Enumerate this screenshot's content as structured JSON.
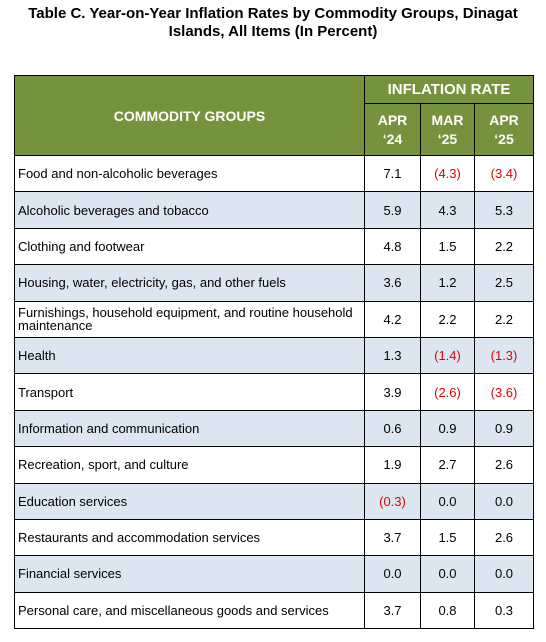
{
  "title": "Table C. Year-on-Year Inflation Rates by Commodity Groups, Dinagat Islands, All Items (In Percent)",
  "table": {
    "header": {
      "group": "COMMODITY GROUPS",
      "span": "INFLATION RATE",
      "columns": [
        "APR ‘24",
        "MAR ‘25",
        "APR ‘25"
      ]
    },
    "rows": [
      [
        "Food and non-alcoholic beverages",
        "7.1",
        "(4.3)",
        "(3.4)"
      ],
      [
        "Alcoholic beverages and tobacco",
        "5.9",
        "4.3",
        "5.3"
      ],
      [
        "Clothing and footwear",
        "4.8",
        "1.5",
        "2.2"
      ],
      [
        "Housing, water, electricity, gas, and other fuels",
        "3.6",
        "1.2",
        "2.5"
      ],
      [
        "Furnishings, household equipment, and routine household maintenance",
        "4.2",
        "2.2",
        "2.2"
      ],
      [
        "Health",
        "1.3",
        "(1.4)",
        "(1.3)"
      ],
      [
        "Transport",
        "3.9",
        "(2.6)",
        "(3.6)"
      ],
      [
        "Information and communication",
        "0.6",
        "0.9",
        "0.9"
      ],
      [
        "Recreation, sport, and culture",
        "1.9",
        "2.7",
        "2.6"
      ],
      [
        "Education services",
        "(0.3)",
        "0.0",
        "0.0"
      ],
      [
        "Restaurants and accommodation services",
        "3.7",
        "1.5",
        "2.6"
      ],
      [
        "Financial services",
        "0.0",
        "0.0",
        "0.0"
      ],
      [
        "Personal care, and miscellaneous goods and services",
        "3.7",
        "0.8",
        "0.3"
      ]
    ]
  }
}
